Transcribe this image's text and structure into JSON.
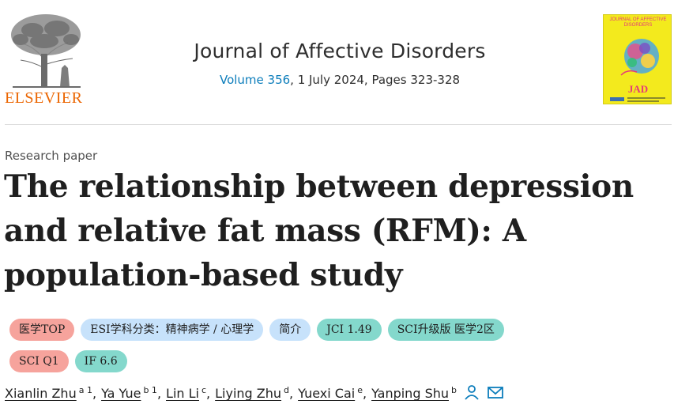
{
  "publisher": {
    "name": "ELSEVIER",
    "logo_icon": "elsevier-tree-icon",
    "brand_color": "#eb6500"
  },
  "journal": {
    "title": "Journal of Affective Disorders",
    "volume_link": "Volume 356",
    "meta_rest": ", 1 July 2024, Pages 323-328",
    "link_color": "#0c7dbb"
  },
  "cover": {
    "title": "JOURNAL OF AFFECTIVE DISORDERS",
    "abbr": "JAD",
    "background": "#f3ea1d"
  },
  "article": {
    "type": "Research paper",
    "title": "The relationship between depression and relative fat mass (RFM): A population-based study"
  },
  "tags": [
    {
      "label": "医学TOP",
      "color": "red"
    },
    {
      "label": "ESI学科分类：精神病学 / 心理学",
      "color": "blue"
    },
    {
      "label": "简介",
      "color": "blue"
    },
    {
      "label": "JCI 1.49",
      "color": "teal"
    },
    {
      "label": "SCI升级版 医学2区",
      "color": "teal"
    },
    {
      "label": "SCI Q1",
      "color": "red"
    },
    {
      "label": "IF 6.6",
      "color": "teal"
    }
  ],
  "authors": [
    {
      "name": "Xianlin Zhu",
      "sup": "a 1"
    },
    {
      "name": "Ya Yue",
      "sup": "b 1"
    },
    {
      "name": "Lin Li",
      "sup": "c"
    },
    {
      "name": "Liying Zhu",
      "sup": "d"
    },
    {
      "name": "Yuexi Cai",
      "sup": "e"
    },
    {
      "name": "Yanping Shu",
      "sup": "b"
    }
  ],
  "author_icons": [
    "person-icon",
    "envelope-icon"
  ],
  "separator": ","
}
